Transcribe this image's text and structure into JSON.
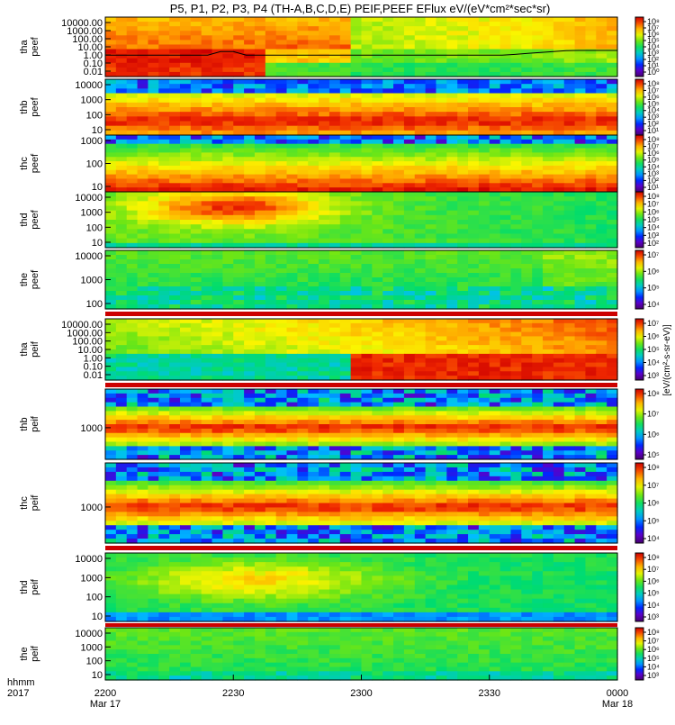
{
  "title": "P5, P1, P2, P3, P4 (TH-A,B,C,D,E) PEIF,PEEF EFlux eV/(eV*cm²*sec*sr)",
  "time_axis": {
    "label_line1": "hhmm",
    "label_line2": "2017",
    "ticks": [
      "2200",
      "2230",
      "2300",
      "2330",
      "0000"
    ],
    "tick_dates": [
      "Mar 17",
      "",
      "",
      "",
      "Mar 18"
    ]
  },
  "colorbar_label": "[eV/(cm²-s-sr-eV)]",
  "colors": {
    "frame": "#000000",
    "background": "#ffffff",
    "fill_line": "#cc0000"
  },
  "chart_data": [
    {
      "type": "heatmap",
      "name": "tha peef",
      "ylabel": [
        "tha",
        "peef"
      ],
      "yticks": [
        "10000.00",
        "1000.00",
        "100.00",
        "10.00",
        "1.00",
        "0.10",
        "0.01"
      ],
      "cbar_ticks": [
        "10⁸",
        "10⁷",
        "10⁶",
        "10⁵",
        "10⁴",
        "10³",
        "10²",
        "10¹",
        "10⁰"
      ],
      "overlay_line": true
    },
    {
      "type": "heatmap",
      "name": "thb peef",
      "ylabel": [
        "thb",
        "peef"
      ],
      "yticks": [
        "10000",
        "1000",
        "100",
        "10"
      ],
      "cbar_ticks": [
        "10⁸",
        "10⁷",
        "10⁶",
        "10⁵",
        "10⁴",
        "10³",
        "10²",
        "10¹"
      ]
    },
    {
      "type": "heatmap",
      "name": "thc peef",
      "ylabel": [
        "thc",
        "peef"
      ],
      "yticks": [
        "1000",
        "100",
        "10"
      ],
      "cbar_ticks": [
        "10⁸",
        "10⁷",
        "10⁶",
        "10⁵",
        "10⁴",
        "10³",
        "10²",
        "10¹"
      ]
    },
    {
      "type": "heatmap",
      "name": "thd peef",
      "ylabel": [
        "thd",
        "peef"
      ],
      "yticks": [
        "10000",
        "1000",
        "100",
        "10"
      ],
      "cbar_ticks": [
        "10⁸",
        "10⁷",
        "10⁶",
        "10⁵",
        "10⁴",
        "10³",
        "10²"
      ]
    },
    {
      "type": "heatmap",
      "name": "the peef",
      "ylabel": [
        "the",
        "peef"
      ],
      "yticks": [
        "10000",
        "1000",
        "100"
      ],
      "cbar_ticks": [
        "10⁷",
        "10⁶",
        "10⁵",
        "10⁴"
      ]
    },
    {
      "type": "heatmap",
      "name": "tha peif",
      "ylabel": [
        "tha",
        "peif"
      ],
      "yticks": [
        "10000.00",
        "1000.00",
        "100.00",
        "10.00",
        "1.00",
        "0.10",
        "0.01"
      ],
      "cbar_ticks": [
        "10⁷",
        "10⁶",
        "10⁵",
        "10⁴",
        "10³"
      ]
    },
    {
      "type": "heatmap",
      "name": "thb peif",
      "ylabel": [
        "thb",
        "peif"
      ],
      "yticks": [
        "1000"
      ],
      "cbar_ticks": [
        "10⁸",
        "10⁷",
        "10⁶",
        "10⁵"
      ]
    },
    {
      "type": "heatmap",
      "name": "thc peif",
      "ylabel": [
        "thc",
        "peif"
      ],
      "yticks": [
        "1000"
      ],
      "cbar_ticks": [
        "10⁸",
        "10⁷",
        "10⁶",
        "10⁵",
        "10⁴"
      ]
    },
    {
      "type": "heatmap",
      "name": "thd peif",
      "ylabel": [
        "thd",
        "peif"
      ],
      "yticks": [
        "10000",
        "1000",
        "100",
        "10"
      ],
      "cbar_ticks": [
        "10⁸",
        "10⁷",
        "10⁶",
        "10⁵",
        "10⁴",
        "10³"
      ]
    },
    {
      "type": "heatmap",
      "name": "the peif",
      "ylabel": [
        "the",
        "peif"
      ],
      "yticks": [
        "10000",
        "1000",
        "100",
        "10"
      ],
      "cbar_ticks": [
        "10⁸",
        "10⁷",
        "10⁶",
        "10⁵",
        "10⁴",
        "10³"
      ]
    }
  ]
}
